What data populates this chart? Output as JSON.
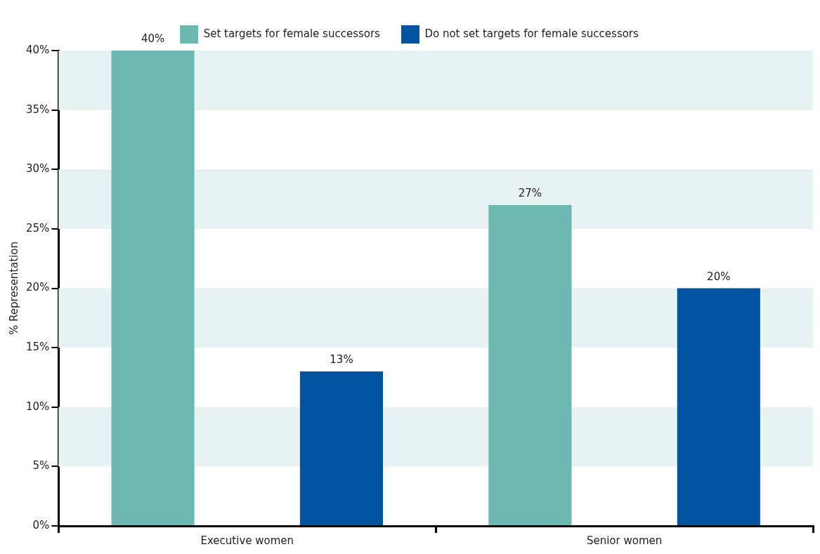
{
  "chart_data": {
    "type": "bar",
    "ylabel": "% Representation",
    "categories": [
      "Executive women",
      "Senior women"
    ],
    "series": [
      {
        "name": "Set targets for female successors",
        "color": "#6bb9b1",
        "values": [
          40,
          27
        ],
        "value_labels": [
          "40%",
          "27%"
        ]
      },
      {
        "name": "Do not set targets for female successors",
        "color": "#00549f",
        "values": [
          13,
          20
        ],
        "value_labels": [
          "13%",
          "20%"
        ]
      }
    ],
    "ylim": [
      0,
      40
    ],
    "yticks": [
      {
        "value": 0,
        "label": "0%"
      },
      {
        "value": 5,
        "label": "5%"
      },
      {
        "value": 10,
        "label": "10%"
      },
      {
        "value": 15,
        "label": "15%"
      },
      {
        "value": 20,
        "label": "20%"
      },
      {
        "value": 25,
        "label": "25%"
      },
      {
        "value": 30,
        "label": "30%"
      },
      {
        "value": 35,
        "label": "35%"
      },
      {
        "value": 40,
        "label": "40%"
      }
    ],
    "bands": [
      {
        "axis": "y",
        "from": 5,
        "to": 10,
        "color": "#e7f3f1"
      },
      {
        "axis": "y",
        "from": 15,
        "to": 20,
        "color": "#e7f3f1"
      },
      {
        "axis": "y",
        "from": 25,
        "to": 30,
        "color": "#e7f3f1"
      },
      {
        "axis": "y",
        "from": 35,
        "to": 40,
        "color": "#e7f3f1"
      }
    ],
    "grid": false,
    "legend": "top"
  }
}
